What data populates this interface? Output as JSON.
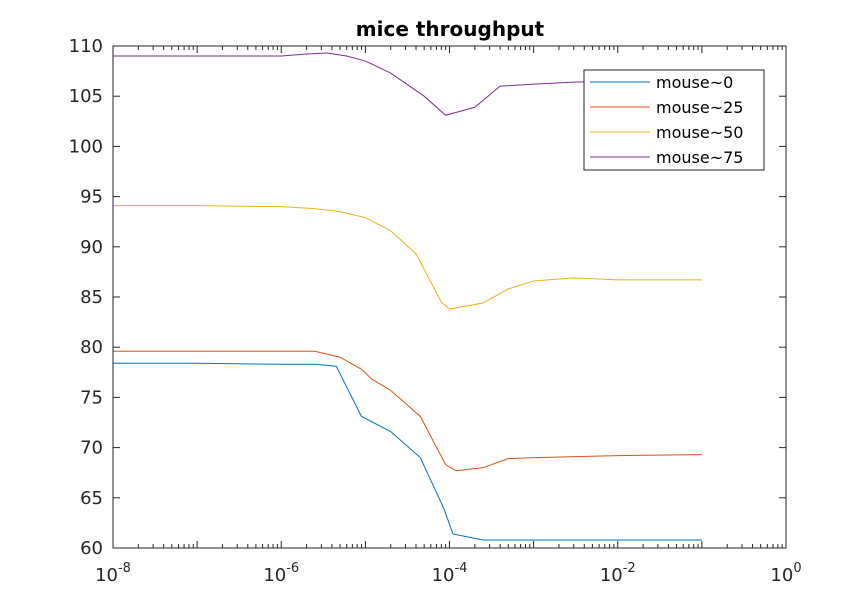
{
  "chart_data": {
    "type": "line",
    "title": "mice throughput",
    "xlabel": "",
    "ylabel": "",
    "xscale": "log",
    "xlim": [
      1e-08,
      1
    ],
    "ylim": [
      60,
      110
    ],
    "grid": false,
    "legend_position": "top-right",
    "x_ticks": [
      {
        "value": 1e-08,
        "base": "10",
        "exp": "-8"
      },
      {
        "value": 1e-06,
        "base": "10",
        "exp": "-6"
      },
      {
        "value": 0.0001,
        "base": "10",
        "exp": "-4"
      },
      {
        "value": 0.01,
        "base": "10",
        "exp": "-2"
      },
      {
        "value": 1,
        "base": "10",
        "exp": "0"
      }
    ],
    "y_ticks": [
      {
        "value": 60,
        "label": "60"
      },
      {
        "value": 65,
        "label": "65"
      },
      {
        "value": 70,
        "label": "70"
      },
      {
        "value": 75,
        "label": "75"
      },
      {
        "value": 80,
        "label": "80"
      },
      {
        "value": 85,
        "label": "85"
      },
      {
        "value": 90,
        "label": "90"
      },
      {
        "value": 95,
        "label": "95"
      },
      {
        "value": 100,
        "label": "100"
      },
      {
        "value": 105,
        "label": "105"
      },
      {
        "value": 110,
        "label": "110"
      }
    ],
    "series": [
      {
        "name": "mouse~0",
        "color": "#0072BD",
        "points": [
          [
            1e-08,
            78.4
          ],
          [
            1e-07,
            78.4
          ],
          [
            1e-06,
            78.3
          ],
          [
            2.5e-06,
            78.3
          ],
          [
            4.5e-06,
            78.1
          ],
          [
            9e-06,
            73.1
          ],
          [
            2e-05,
            71.6
          ],
          [
            4.5e-05,
            69.0
          ],
          [
            8.5e-05,
            64.0
          ],
          [
            0.00011,
            61.4
          ],
          [
            0.00025,
            60.8
          ],
          [
            0.001,
            60.8
          ],
          [
            0.01,
            60.8
          ],
          [
            0.1,
            60.8
          ]
        ]
      },
      {
        "name": "mouse~25",
        "color": "#D95319",
        "points": [
          [
            1e-08,
            79.6
          ],
          [
            1e-07,
            79.6
          ],
          [
            1e-06,
            79.6
          ],
          [
            2.5e-06,
            79.6
          ],
          [
            5e-06,
            79.0
          ],
          [
            9e-06,
            77.8
          ],
          [
            1.2e-05,
            76.8
          ],
          [
            2e-05,
            75.7
          ],
          [
            4.5e-05,
            73.1
          ],
          [
            9e-05,
            68.3
          ],
          [
            0.00012,
            67.7
          ],
          [
            0.00025,
            68.0
          ],
          [
            0.0005,
            68.9
          ],
          [
            0.001,
            69.0
          ],
          [
            0.01,
            69.2
          ],
          [
            0.1,
            69.3
          ]
        ]
      },
      {
        "name": "mouse~50",
        "color": "#EDB120",
        "points": [
          [
            1e-08,
            94.1
          ],
          [
            1e-07,
            94.1
          ],
          [
            1e-06,
            94.0
          ],
          [
            2.5e-06,
            93.8
          ],
          [
            5e-06,
            93.5
          ],
          [
            1e-05,
            92.9
          ],
          [
            2e-05,
            91.6
          ],
          [
            4e-05,
            89.3
          ],
          [
            8e-05,
            84.5
          ],
          [
            0.0001,
            83.8
          ],
          [
            0.00025,
            84.4
          ],
          [
            0.0005,
            85.8
          ],
          [
            0.001,
            86.6
          ],
          [
            0.003,
            86.9
          ],
          [
            0.01,
            86.7
          ],
          [
            0.1,
            86.7
          ]
        ]
      },
      {
        "name": "mouse~75",
        "color": "#7E2F8E",
        "points": [
          [
            1e-08,
            109.0
          ],
          [
            1e-07,
            109.0
          ],
          [
            1e-06,
            109.0
          ],
          [
            2e-06,
            109.2
          ],
          [
            3.5e-06,
            109.3
          ],
          [
            6e-06,
            109.0
          ],
          [
            1e-05,
            108.5
          ],
          [
            2e-05,
            107.3
          ],
          [
            5e-05,
            105.0
          ],
          [
            9e-05,
            103.1
          ],
          [
            0.0002,
            103.9
          ],
          [
            0.0004,
            106.0
          ],
          [
            0.001,
            106.2
          ],
          [
            0.003,
            106.4
          ],
          [
            0.01,
            106.5
          ],
          [
            0.02,
            106.4
          ]
        ]
      }
    ]
  }
}
